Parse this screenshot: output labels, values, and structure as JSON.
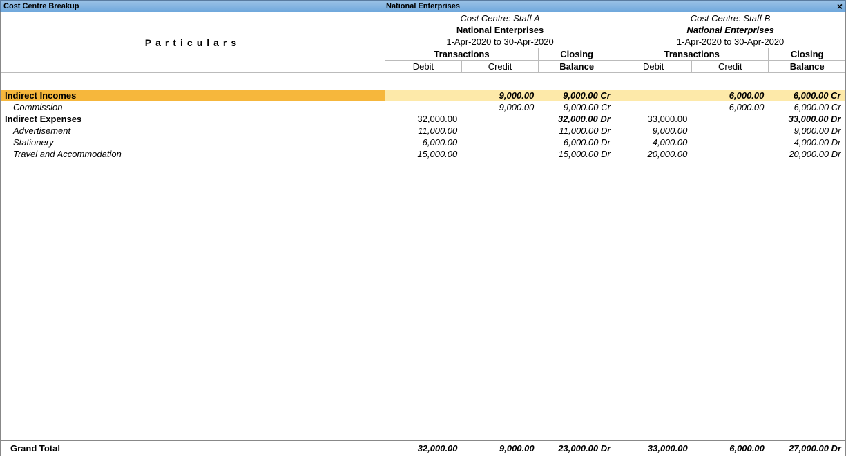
{
  "titlebar": {
    "left": "Cost Centre Breakup",
    "center": "National Enterprises",
    "close": "×"
  },
  "particulars_label": "Particulars",
  "cost_centres": [
    {
      "header_line1": "Cost Centre: Staff A",
      "header_line2": "National Enterprises",
      "header_line2_style": "bold",
      "header_line3": "1-Apr-2020 to 30-Apr-2020",
      "trans_label": "Transactions",
      "closing_label": "Closing",
      "balance_label": "Balance",
      "debit_label": "Debit",
      "credit_label": "Credit"
    },
    {
      "header_line1": "Cost Centre: Staff B",
      "header_line2": "National Enterprises",
      "header_line2_style": "bolditalic",
      "header_line3": "1-Apr-2020 to 30-Apr-2020",
      "trans_label": "Transactions",
      "closing_label": "Closing",
      "balance_label": "Balance",
      "debit_label": "Debit",
      "credit_label": "Credit"
    }
  ],
  "rows": [
    {
      "type": "highlight",
      "label": "Indirect Incomes",
      "cc": [
        {
          "debit": "",
          "credit": "9,000.00",
          "balance": "9,000.00 Cr"
        },
        {
          "debit": "",
          "credit": "6,000.00",
          "balance": "6,000.00 Cr"
        }
      ]
    },
    {
      "type": "sub",
      "label": "Commission",
      "cc": [
        {
          "debit": "",
          "credit": "9,000.00",
          "balance": "9,000.00 Cr"
        },
        {
          "debit": "",
          "credit": "6,000.00",
          "balance": "6,000.00 Cr"
        }
      ]
    },
    {
      "type": "group",
      "label": "Indirect Expenses",
      "cc": [
        {
          "debit": "32,000.00",
          "credit": "",
          "balance": "32,000.00 Dr"
        },
        {
          "debit": "33,000.00",
          "credit": "",
          "balance": "33,000.00 Dr"
        }
      ]
    },
    {
      "type": "sub",
      "label": "Advertisement",
      "cc": [
        {
          "debit": "11,000.00",
          "credit": "",
          "balance": "11,000.00 Dr"
        },
        {
          "debit": "9,000.00",
          "credit": "",
          "balance": "9,000.00 Dr"
        }
      ]
    },
    {
      "type": "sub",
      "label": "Stationery",
      "cc": [
        {
          "debit": "6,000.00",
          "credit": "",
          "balance": "6,000.00 Dr"
        },
        {
          "debit": "4,000.00",
          "credit": "",
          "balance": "4,000.00 Dr"
        }
      ]
    },
    {
      "type": "sub",
      "label": "Travel and Accommodation",
      "cc": [
        {
          "debit": "15,000.00",
          "credit": "",
          "balance": "15,000.00 Dr"
        },
        {
          "debit": "20,000.00",
          "credit": "",
          "balance": "20,000.00 Dr"
        }
      ]
    }
  ],
  "grand_total": {
    "label": "Grand Total",
    "cc": [
      {
        "debit": "32,000.00",
        "credit": "9,000.00",
        "balance": "23,000.00 Dr"
      },
      {
        "debit": "33,000.00",
        "credit": "6,000.00",
        "balance": "27,000.00 Dr"
      }
    ]
  },
  "colors": {
    "titlebar_top": "#9bc2e6",
    "titlebar_bottom": "#6fa8dc",
    "highlight_row": "#fde9a9",
    "highlight_label": "#f6b73c",
    "border": "#888888",
    "border_light": "#bbbbbb",
    "background": "#ffffff"
  }
}
